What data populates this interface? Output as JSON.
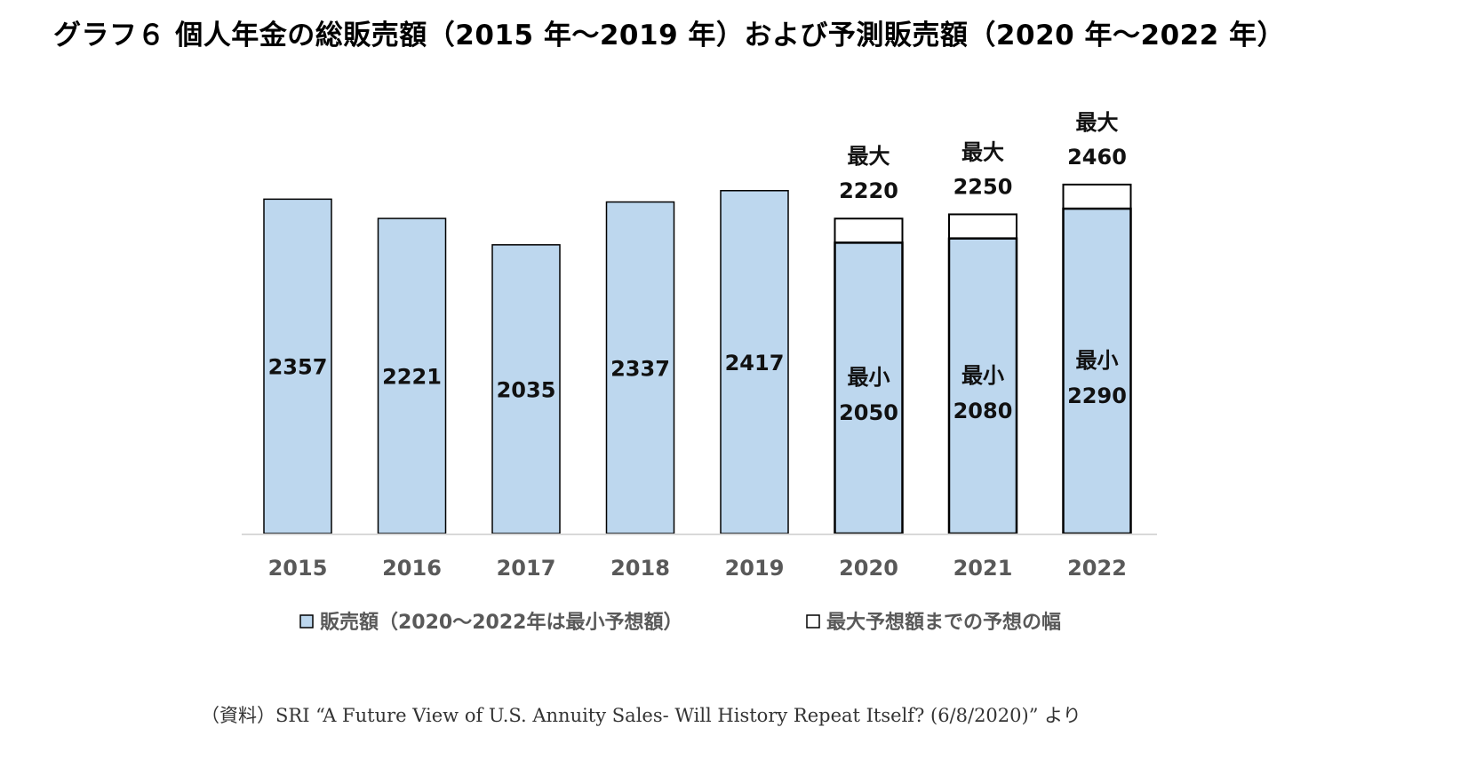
{
  "title": "グラフ６ 個人年金の総販売額（2015 年～2019 年）および予測販売額（2020 年～2022 年）",
  "source": "（資料）SRI “A Future View of U.S. Annuity Sales- Will History Repeat Itself? (6/8/2020)” より",
  "colors": {
    "sales": "#bdd7ee",
    "range": "#ffffff",
    "axis": "#d9d9d9"
  },
  "chart_data": {
    "type": "bar",
    "stacked": true,
    "categories": [
      "2015",
      "2016",
      "2017",
      "2018",
      "2019",
      "2020",
      "2021",
      "2022"
    ],
    "series": [
      {
        "name": "販売額（2020～2022年は最小予想額）",
        "values": [
          2357,
          2221,
          2035,
          2337,
          2417,
          2050,
          2080,
          2290
        ]
      },
      {
        "name": "最大予想額までの予想の幅",
        "values": [
          0,
          0,
          0,
          0,
          0,
          170,
          170,
          170
        ]
      }
    ],
    "max_values": [
      null,
      null,
      null,
      null,
      null,
      2220,
      2250,
      2460
    ],
    "label_prefix_min": "最小",
    "label_prefix_max": "最大",
    "ylim": [
      0,
      2700
    ],
    "legend_position": "bottom",
    "grid": false
  }
}
